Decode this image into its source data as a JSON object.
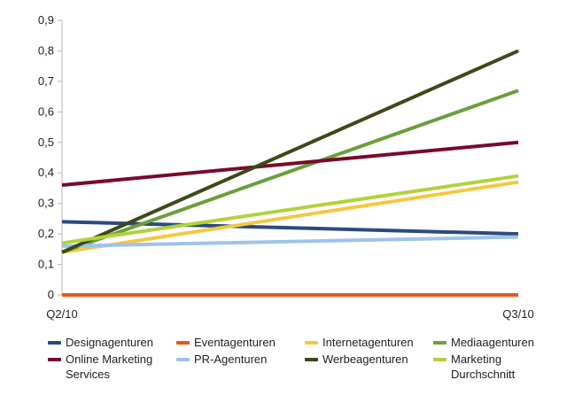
{
  "chart_data": {
    "type": "line",
    "categories": [
      "Q2/10",
      "Q3/10"
    ],
    "ylim": [
      0,
      0.9
    ],
    "yticks": [
      "0",
      "0,1",
      "0,2",
      "0,3",
      "0,4",
      "0,5",
      "0,6",
      "0,7",
      "0,8",
      "0,9"
    ],
    "grid": false,
    "legend_position": "bottom",
    "series": [
      {
        "name": "Designagenturen",
        "values": [
          0.24,
          0.2
        ],
        "color": "#2a4a7f"
      },
      {
        "name": "Eventagenturen",
        "values": [
          0.0,
          0.0
        ],
        "color": "#e8581c"
      },
      {
        "name": "Internetagenturen",
        "values": [
          0.14,
          0.37
        ],
        "color": "#f5c842"
      },
      {
        "name": "Mediaagenturen",
        "values": [
          0.14,
          0.67
        ],
        "color": "#6a9f3a"
      },
      {
        "name": "Online Marketing Services",
        "values": [
          0.36,
          0.5
        ],
        "color": "#7a0a2a"
      },
      {
        "name": "PR-Agenturen",
        "values": [
          0.16,
          0.19
        ],
        "color": "#9dc3ea"
      },
      {
        "name": "Werbeagenturen",
        "values": [
          0.14,
          0.8
        ],
        "color": "#3b4a17"
      },
      {
        "name": "Marketing Durchschnitt",
        "values": [
          0.17,
          0.39
        ],
        "color": "#b3d23a"
      }
    ]
  }
}
